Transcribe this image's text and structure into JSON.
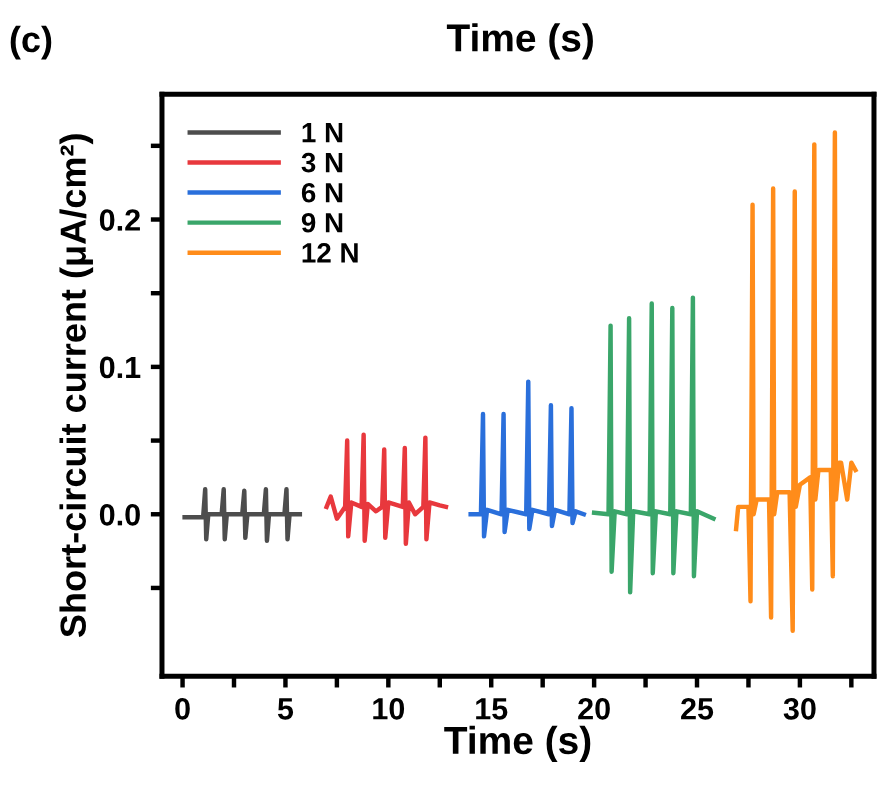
{
  "chart_data": {
    "type": "line",
    "xlabel": "Time (s)",
    "ylabel": "Short-circuit current (μA/cm²)",
    "annotations": [
      "(c)",
      "Time (s)"
    ],
    "xlim": [
      -1,
      33.6
    ],
    "ylim": [
      -0.11,
      0.285
    ],
    "xticks": [
      0,
      {
        "value": 2.5,
        "label": null
      },
      5,
      {
        "value": 7.5,
        "label": null
      },
      10,
      {
        "value": 12.5,
        "label": null
      },
      15,
      {
        "value": 17.5,
        "label": null
      },
      20,
      {
        "value": 22.5,
        "label": null
      },
      25,
      {
        "value": 27.5,
        "label": null
      },
      30,
      {
        "value": 32.5,
        "label": null
      }
    ],
    "yticks": [
      {
        "value": -0.05,
        "label": null
      },
      {
        "value": 0.0,
        "label": "0.0"
      },
      {
        "value": 0.05,
        "label": null
      },
      0.1,
      {
        "value": 0.15,
        "label": null
      },
      0.2,
      {
        "value": 0.25,
        "label": null
      }
    ],
    "grid": false,
    "legend": "top left",
    "line_style": "solid",
    "marker": "none",
    "series": [
      {
        "name": "1 N",
        "color": "#4d4d4d",
        "x": [
          0.1,
          1.0,
          1.1,
          1.15,
          1.25,
          1.9,
          2.0,
          2.05,
          2.15,
          2.9,
          3.0,
          3.05,
          3.15,
          3.95,
          4.05,
          4.1,
          4.2,
          4.95,
          5.05,
          5.1,
          5.2,
          5.7
        ],
        "values": [
          -0.002,
          -0.002,
          0.017,
          -0.017,
          0,
          0,
          0.017,
          -0.017,
          0,
          0,
          0.016,
          -0.016,
          0,
          0,
          0.017,
          -0.018,
          0,
          0,
          0.017,
          -0.017,
          0,
          0
        ]
      },
      {
        "name": "3 N",
        "color": "#e8383d",
        "x": [
          7.0,
          7.2,
          7.5,
          7.9,
          8.0,
          8.05,
          8.2,
          8.7,
          8.8,
          8.85,
          9.0,
          9.4,
          9.7,
          9.8,
          9.85,
          10.0,
          10.7,
          10.8,
          10.85,
          11.0,
          11.3,
          11.7,
          11.8,
          11.85,
          12.0,
          12.5,
          12.8
        ],
        "values": [
          0.005,
          0.012,
          -0.003,
          0.005,
          0.05,
          -0.015,
          0.008,
          0.005,
          0.054,
          -0.018,
          0.007,
          0.002,
          0.005,
          0.044,
          -0.016,
          0.008,
          0.005,
          0.045,
          -0.02,
          0.008,
          0.0,
          0.005,
          0.052,
          -0.017,
          0.008,
          0.006,
          0.005
        ]
      },
      {
        "name": "6 N",
        "color": "#2a6fdb",
        "x": [
          14.0,
          14.5,
          14.6,
          14.65,
          14.8,
          15.5,
          15.6,
          15.65,
          15.8,
          16.7,
          16.8,
          16.85,
          17.0,
          17.8,
          17.9,
          17.95,
          18.1,
          18.8,
          18.9,
          18.95,
          19.1,
          19.5
        ],
        "values": [
          0,
          0,
          0.068,
          -0.015,
          0.003,
          0,
          0.068,
          -0.012,
          0.003,
          0,
          0.09,
          -0.01,
          0.003,
          0,
          0.074,
          -0.008,
          0.003,
          0,
          0.072,
          -0.006,
          0.002,
          0
        ]
      },
      {
        "name": "9 N",
        "color": "#3aa66a",
        "x": [
          20.0,
          20.7,
          20.8,
          20.85,
          21.0,
          21.6,
          21.7,
          21.75,
          21.9,
          22.7,
          22.8,
          22.85,
          23.0,
          23.7,
          23.8,
          23.85,
          24.0,
          24.7,
          24.8,
          24.85,
          25.0,
          25.8
        ],
        "values": [
          0.001,
          0,
          0.128,
          -0.039,
          0.002,
          0,
          0.133,
          -0.053,
          0.002,
          0,
          0.143,
          -0.04,
          0.002,
          0,
          0.14,
          -0.04,
          0.002,
          0,
          0.147,
          -0.042,
          0.002,
          -0.003
        ]
      },
      {
        "name": "12 N",
        "color": "#ff8c1a",
        "x": [
          26.9,
          27.0,
          27.5,
          27.6,
          27.7,
          27.75,
          27.9,
          28.5,
          28.6,
          28.7,
          28.75,
          28.9,
          29.5,
          29.65,
          29.75,
          29.8,
          30.0,
          30.5,
          30.6,
          30.7,
          30.75,
          30.9,
          31.5,
          31.6,
          31.7,
          31.75,
          31.9,
          32.0,
          32.3,
          32.5,
          32.7
        ],
        "values": [
          -0.01,
          0.005,
          0.005,
          -0.059,
          0.21,
          0.0,
          0.01,
          0.01,
          -0.07,
          0.221,
          0.0,
          0.015,
          0.015,
          -0.079,
          0.219,
          0.005,
          0.02,
          0.025,
          -0.051,
          0.251,
          0.01,
          0.03,
          0.03,
          -0.042,
          0.259,
          0.01,
          0.035,
          0.035,
          0.01,
          0.035,
          0.03
        ]
      }
    ]
  }
}
